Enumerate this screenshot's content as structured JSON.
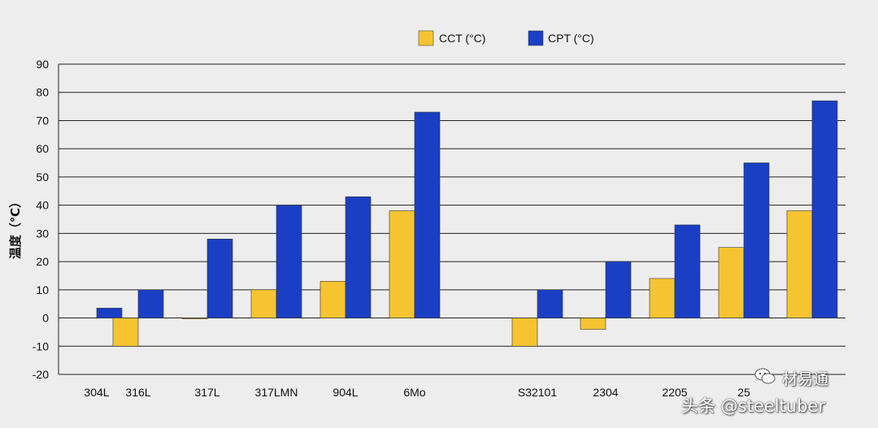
{
  "colors": {
    "cct": "#f5c430",
    "cpt": "#1a3fc4",
    "grid": "#222222",
    "background": "#ededed"
  },
  "chart_data": {
    "type": "bar",
    "title": "",
    "xlabel": "",
    "ylabel": "温度（℃）",
    "ylim": [
      -20,
      90
    ],
    "yticks": [
      -20,
      -10,
      0,
      10,
      20,
      30,
      40,
      50,
      60,
      70,
      80,
      90
    ],
    "yticklabels": [
      "-20",
      "-10",
      "0",
      "10",
      "20",
      "30",
      "40",
      "50",
      "60",
      "70",
      "80",
      "90"
    ],
    "legend_position": "top-center",
    "categories": [
      "304L",
      "316L",
      "317L",
      "317LMN",
      "904L",
      "6Mo",
      "S32101",
      "2304",
      "2205",
      "25",
      ""
    ],
    "series": [
      {
        "name": "CCT (°C)",
        "values": [
          null,
          -10,
          0,
          10,
          13,
          38,
          -10,
          -4,
          14,
          25,
          38
        ]
      },
      {
        "name": "CPT (°C)",
        "values": [
          3.5,
          10,
          28,
          40,
          43,
          73,
          10,
          20,
          33,
          55,
          77
        ]
      }
    ]
  },
  "watermark": {
    "text": "头条 @steeltuber",
    "logo_text": "材易通",
    "logo_icon": "wechat-icon"
  }
}
